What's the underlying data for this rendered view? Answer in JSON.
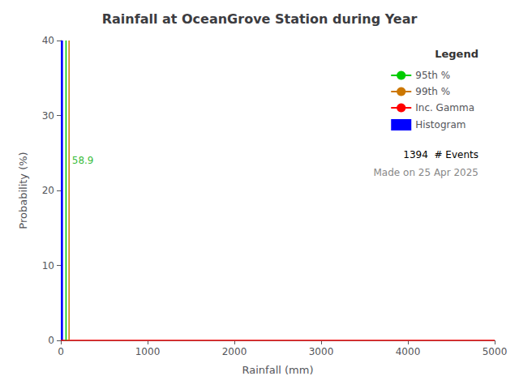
{
  "chart_data": {
    "type": "histogram",
    "title": "Rainfall at OceanGrove Station during Year",
    "xlabel": "Rainfall (mm)",
    "ylabel": "Probability (%)",
    "xlim": [
      0,
      5000
    ],
    "ylim": [
      0,
      40
    ],
    "xticks": [
      0,
      1000,
      2000,
      3000,
      4000,
      5000
    ],
    "yticks": [
      0,
      10,
      20,
      30,
      40
    ],
    "grid": false,
    "legend": "upper right",
    "legend_title": "Legend",
    "series": [
      {
        "name": "95th %",
        "type": "vline",
        "x": 60,
        "color": "#00cc00"
      },
      {
        "name": "99th %",
        "type": "vline",
        "x": 95,
        "color": "#cc7700"
      },
      {
        "name": "Inc. Gamma",
        "type": "line",
        "x": [
          0,
          5000
        ],
        "values": [
          0,
          0
        ],
        "color": "#ff0000"
      },
      {
        "name": "Histogram",
        "type": "histogram",
        "bins": [
          0,
          25
        ],
        "values": [
          40.0
        ],
        "color": "#0000ff"
      }
    ],
    "annotations": [
      {
        "text": "58.9",
        "x": 110,
        "y": 24.0,
        "color": "#00aa00"
      }
    ],
    "notes": [
      {
        "text": "1394  # Events",
        "color": "#000000"
      },
      {
        "text": "Made on 25 Apr 2025",
        "color": "#888888"
      }
    ]
  }
}
